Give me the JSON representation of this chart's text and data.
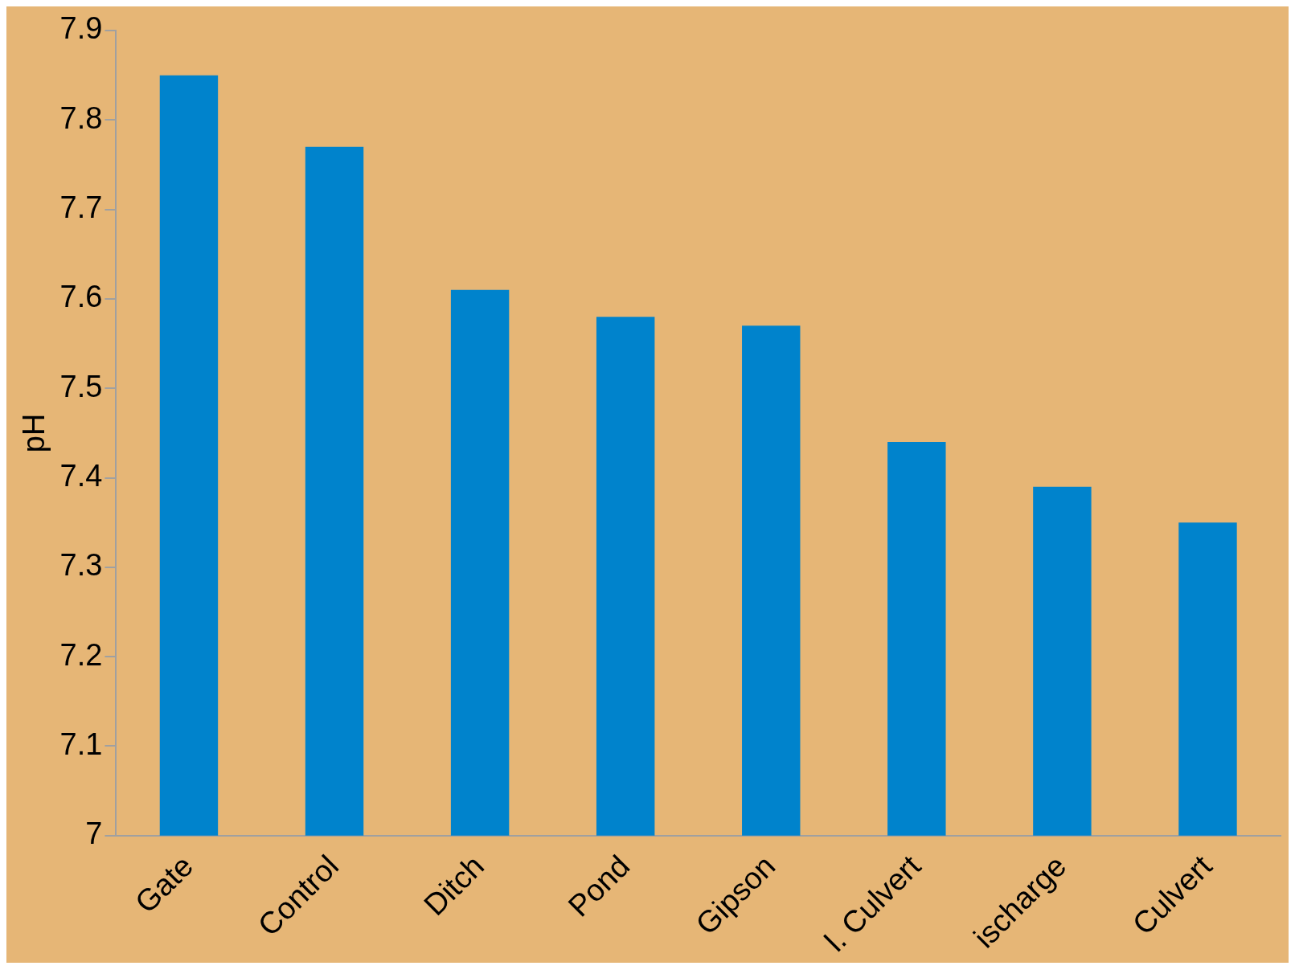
{
  "chart_data": {
    "type": "bar",
    "ylabel": "pH",
    "categories": [
      "Gate",
      "Control",
      "Ditch",
      "Pond",
      "Gipson",
      "l. Culvert",
      "ischarge",
      "Culvert"
    ],
    "values": [
      7.85,
      7.77,
      7.61,
      7.58,
      7.57,
      7.44,
      7.39,
      7.35
    ],
    "color": "#0083cc",
    "ylim": [
      7,
      7.9
    ],
    "yticks": [
      7,
      7.1,
      7.2,
      7.3,
      7.4,
      7.5,
      7.6,
      7.7,
      7.8,
      7.9
    ],
    "grid": false,
    "legend": false
  }
}
